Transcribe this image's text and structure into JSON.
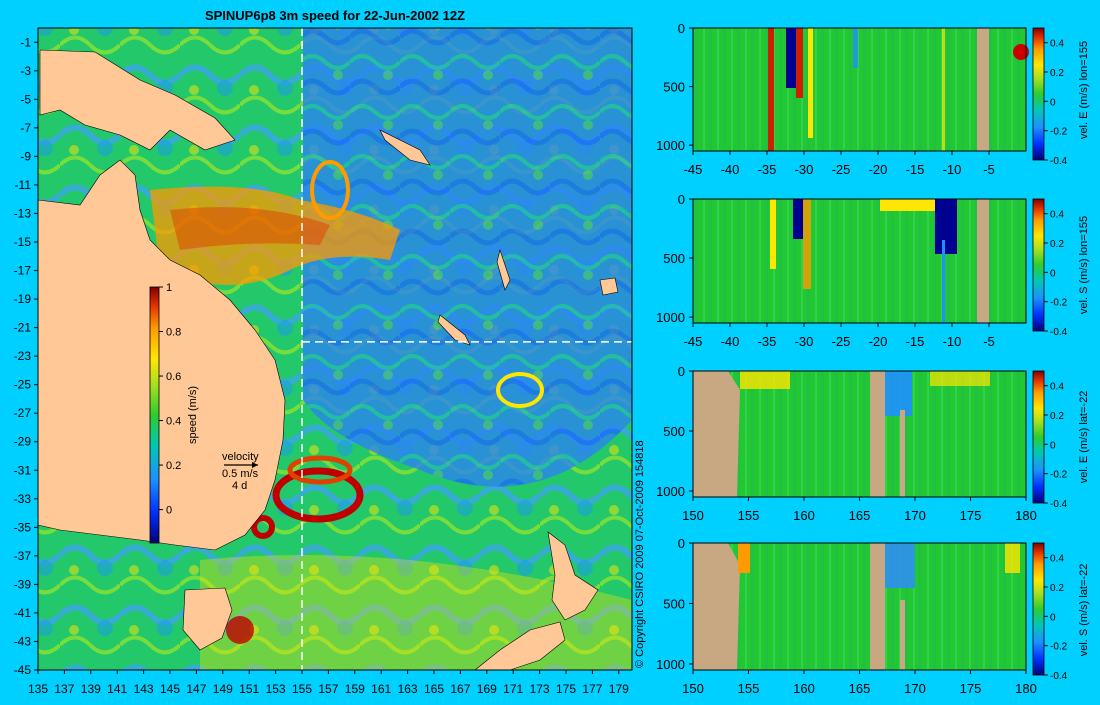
{
  "figure": {
    "background": "#00d0ff",
    "copyright": "© Copyright CSIRO 2009   07-Oct-2009 154818"
  },
  "chart_data": [
    {
      "type": "heatmap",
      "name": "map",
      "title": "SPINUP6p8 3m speed for 22-Jun-2002 12Z",
      "xlim": [
        135,
        180
      ],
      "ylim": [
        -45,
        0
      ],
      "x_ticks": [
        "135",
        "137",
        "139",
        "141",
        "143",
        "145",
        "147",
        "149",
        "151",
        "153",
        "155",
        "157",
        "159",
        "161",
        "163",
        "165",
        "167",
        "169",
        "171",
        "173",
        "175",
        "177",
        "179"
      ],
      "y_ticks": [
        "-1",
        "-3",
        "-5",
        "-7",
        "-9",
        "-11",
        "-13",
        "-15",
        "-17",
        "-19",
        "-21",
        "-23",
        "-25",
        "-27",
        "-29",
        "-31",
        "-33",
        "-35",
        "-37",
        "-39",
        "-41",
        "-43",
        "-45"
      ],
      "guide_lines": {
        "lon": 155,
        "lat": -22
      },
      "land_color": "#ffc896",
      "colorbar": {
        "label": "speed (m/s)",
        "range": [
          -0.15,
          1.0
        ],
        "ticks": [
          "1",
          "0.8",
          "0.6",
          "0.4",
          "0.2",
          "0"
        ]
      },
      "velocity_key": {
        "label": "velocity",
        "speed": "0.5 m/s",
        "period": "4 d"
      }
    },
    {
      "type": "heatmap",
      "name": "section-lon155-east",
      "xlim": [
        -45,
        0
      ],
      "ylim": [
        1050,
        0
      ],
      "x_ticks": [
        "-45",
        "-40",
        "-35",
        "-30",
        "-25",
        "-20",
        "-15",
        "-10",
        "-5"
      ],
      "y_ticks": [
        "0",
        "500",
        "1000"
      ],
      "colorbar": {
        "label": "vel. E (m/s) lon=155",
        "range": [
          -0.4,
          0.5
        ],
        "ticks": [
          "0.4",
          "0.2",
          "0",
          "-0.2",
          "-0.4"
        ]
      }
    },
    {
      "type": "heatmap",
      "name": "section-lon155-south",
      "xlim": [
        -45,
        0
      ],
      "ylim": [
        1050,
        0
      ],
      "x_ticks": [
        "-45",
        "-40",
        "-35",
        "-30",
        "-25",
        "-20",
        "-15",
        "-10",
        "-5"
      ],
      "y_ticks": [
        "0",
        "500",
        "1000"
      ],
      "colorbar": {
        "label": "vel. S (m/s) lon=155",
        "range": [
          -0.4,
          0.5
        ],
        "ticks": [
          "0.4",
          "0.2",
          "0",
          "-0.2",
          "-0.4"
        ]
      }
    },
    {
      "type": "heatmap",
      "name": "section-lat22-east",
      "xlim": [
        150,
        180
      ],
      "ylim": [
        1050,
        0
      ],
      "x_ticks": [
        "150",
        "155",
        "160",
        "165",
        "170",
        "175",
        "180"
      ],
      "y_ticks": [
        "0",
        "500",
        "1000"
      ],
      "colorbar": {
        "label": "vel. E (m/s) lat=-22",
        "range": [
          -0.4,
          0.5
        ],
        "ticks": [
          "0.4",
          "0.2",
          "0",
          "-0.2",
          "-0.4"
        ]
      }
    },
    {
      "type": "heatmap",
      "name": "section-lat22-south",
      "xlim": [
        150,
        180
      ],
      "ylim": [
        1050,
        0
      ],
      "x_ticks": [
        "150",
        "155",
        "160",
        "165",
        "170",
        "175",
        "180"
      ],
      "y_ticks": [
        "0",
        "500",
        "1000"
      ],
      "colorbar": {
        "label": "vel. S (m/s) lat=-22",
        "range": [
          -0.4,
          0.5
        ],
        "ticks": [
          "0.4",
          "0.2",
          "0",
          "-0.2",
          "-0.4"
        ]
      }
    }
  ]
}
